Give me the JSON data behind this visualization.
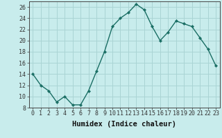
{
  "x": [
    0,
    1,
    2,
    3,
    4,
    5,
    6,
    7,
    8,
    9,
    10,
    11,
    12,
    13,
    14,
    15,
    16,
    17,
    18,
    19,
    20,
    21,
    22,
    23
  ],
  "y": [
    14,
    12,
    11,
    9,
    10,
    8.5,
    8.5,
    11,
    14.5,
    18,
    22.5,
    24,
    25,
    26.5,
    25.5,
    22.5,
    20,
    21.5,
    23.5,
    23,
    22.5,
    20.5,
    18.5,
    15.5
  ],
  "xlabel": "Humidex (Indice chaleur)",
  "ylim": [
    8,
    27
  ],
  "xlim": [
    -0.5,
    23.5
  ],
  "yticks": [
    8,
    10,
    12,
    14,
    16,
    18,
    20,
    22,
    24,
    26
  ],
  "xticks": [
    0,
    1,
    2,
    3,
    4,
    5,
    6,
    7,
    8,
    9,
    10,
    11,
    12,
    13,
    14,
    15,
    16,
    17,
    18,
    19,
    20,
    21,
    22,
    23
  ],
  "line_color": "#1a6e64",
  "marker": "D",
  "marker_size": 2.2,
  "background_color": "#c8ecec",
  "grid_color": "#aad4d4",
  "xlabel_fontsize": 7.5,
  "tick_fontsize": 6,
  "line_width": 1.0
}
